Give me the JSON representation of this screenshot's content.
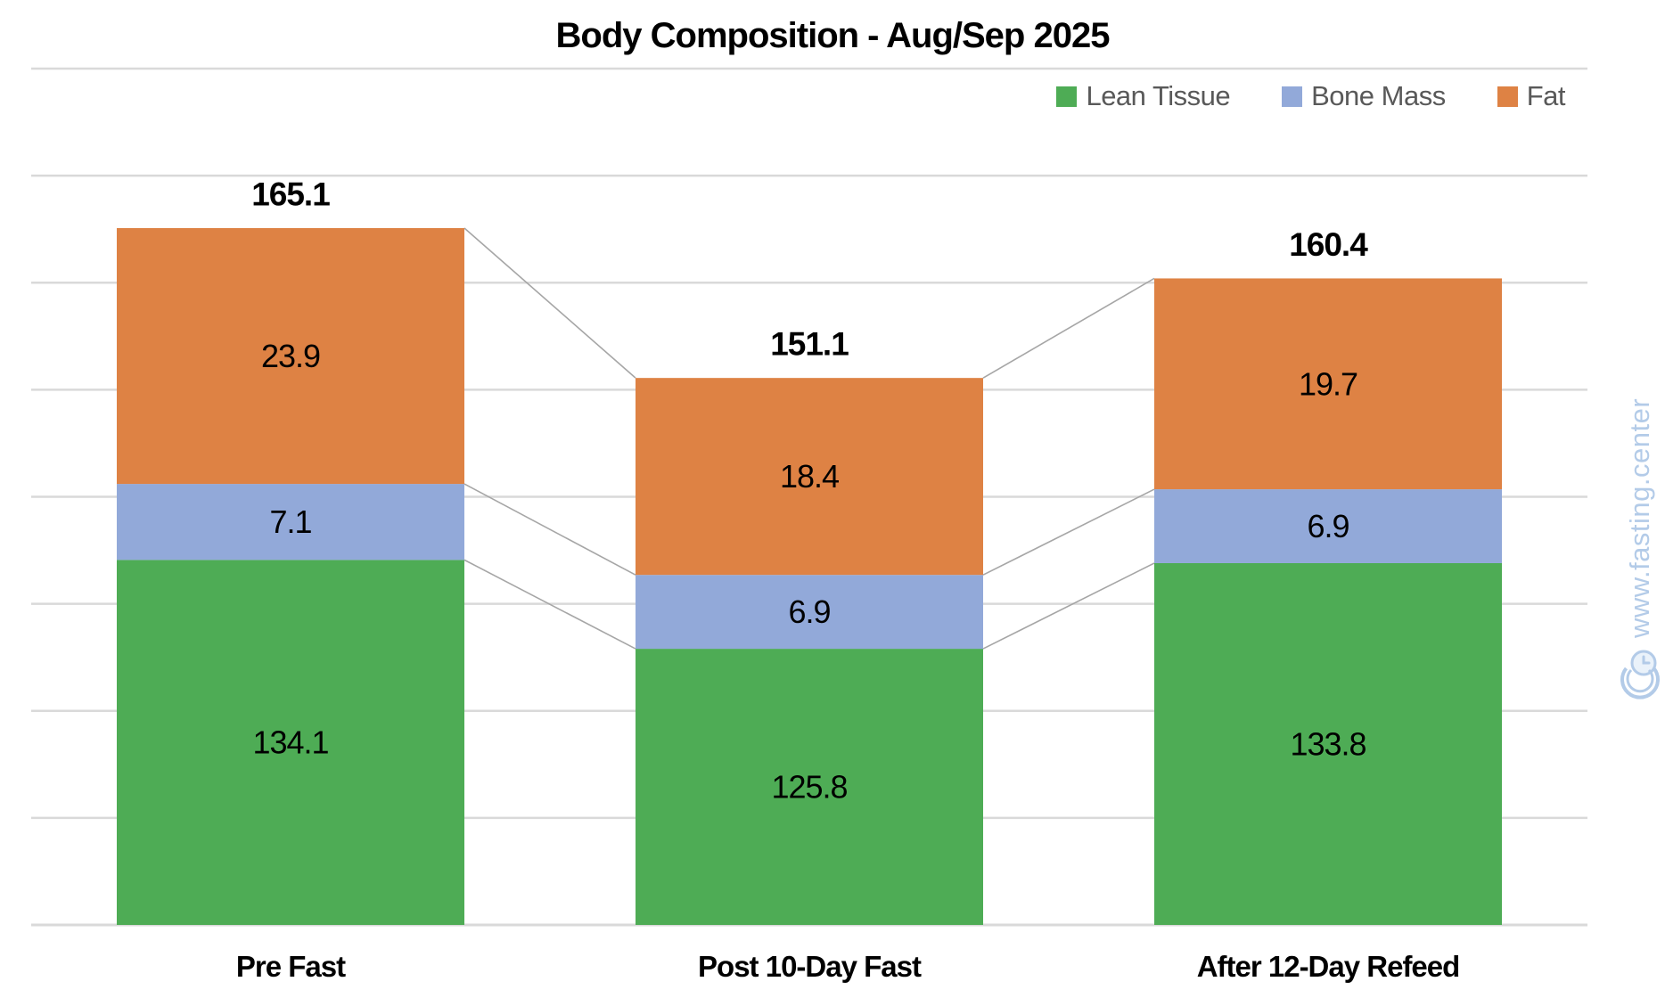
{
  "title": "Body Composition - Aug/Sep 2025",
  "watermark": {
    "text": "www.fasting.center",
    "symbol": "clock-copyright-logo",
    "color": "#b3cbe8"
  },
  "chart_data": {
    "type": "bar",
    "stacked": true,
    "title": "Body Composition - Aug/Sep 2025",
    "categories": [
      "Pre Fast",
      "Post 10-Day Fast",
      "After 12-Day Refeed"
    ],
    "series": [
      {
        "name": "Lean Tissue",
        "color": "#4EAC55",
        "values": [
          134.1,
          125.8,
          133.8
        ]
      },
      {
        "name": "Bone Mass",
        "color": "#92A9D9",
        "values": [
          7.1,
          6.9,
          6.9
        ]
      },
      {
        "name": "Fat",
        "color": "#DE8244",
        "values": [
          23.9,
          18.4,
          19.7
        ]
      }
    ],
    "totals": [
      165.1,
      151.1,
      160.4
    ],
    "xlabel": "",
    "ylabel": "",
    "ylim": [
      100,
      180
    ],
    "gridline_step": 10,
    "grid": true,
    "y_axis_labels_visible": false,
    "legend_position": "top-right",
    "series_connector_lines": true,
    "colors": {
      "gridline": "#d9d9d9",
      "connector_line": "#a6a6a6",
      "value_label": "#000000",
      "total_label": "#000000",
      "legend_text": "#595959"
    }
  }
}
